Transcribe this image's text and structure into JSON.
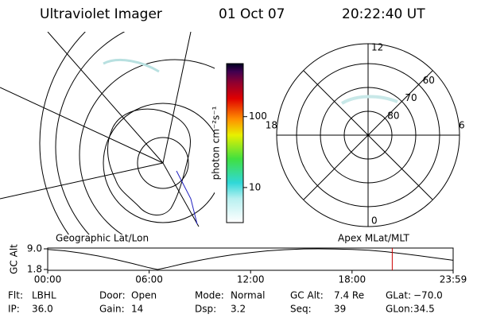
{
  "header": {
    "title": "Ultraviolet Imager",
    "date": "01 Oct 07",
    "time": "20:22:40 UT"
  },
  "colorbar": {
    "label": "photon cm⁻²s⁻¹",
    "scale": "log",
    "lim": [
      3.2,
      560
    ],
    "ticks": [
      10,
      100
    ]
  },
  "polar": {
    "mlt_labels": [
      12,
      18,
      6,
      0
    ],
    "lat_labels": [
      60,
      70,
      80
    ]
  },
  "altitude_plot": {
    "left_title": "Geographic Lat/Lon",
    "right_title": "Apex MLat/MLT",
    "ylabel": "GC Alt",
    "ylim": [
      1.8,
      9.0
    ],
    "yticks": [
      {
        "value": 9.0,
        "label": "9.0"
      },
      {
        "value": 1.8,
        "label": "1.8"
      }
    ],
    "xlim": [
      0,
      23.98
    ],
    "xticks": [
      {
        "value": 0,
        "label": "00:00"
      },
      {
        "value": 6,
        "label": "06:00"
      },
      {
        "value": 12,
        "label": "12:00"
      },
      {
        "value": 18,
        "label": "18:00"
      },
      {
        "value": 23.98,
        "label": "23:59"
      }
    ],
    "x": [
      0,
      1,
      2,
      3,
      4,
      5,
      6,
      6.5,
      7,
      8,
      9,
      10,
      11,
      12,
      13,
      14,
      15,
      16,
      17,
      18,
      19,
      20,
      21,
      22,
      23,
      23.98
    ],
    "values": [
      8.8,
      8.3,
      7.5,
      6.5,
      5.3,
      3.9,
      2.4,
      1.8,
      2.4,
      3.8,
      5.0,
      6.1,
      7.0,
      7.7,
      8.3,
      8.7,
      8.95,
      9.0,
      8.95,
      8.8,
      8.5,
      8.0,
      7.3,
      6.6,
      5.8,
      5.0
    ],
    "marker_color": "#cc0000"
  },
  "footer": {
    "rows": [
      [
        [
          "Flt:",
          "LBHL"
        ],
        [
          "Door:",
          "Open"
        ],
        [
          "Mode:",
          "Normal"
        ],
        [
          "GC Alt:",
          "7.4 Re"
        ],
        [
          "GLat:",
          "−70.0"
        ]
      ],
      [
        [
          "IP:",
          "36.0"
        ],
        [
          "Gain:",
          "14"
        ],
        [
          "Dsp:",
          "3.2"
        ],
        [
          "Seq:",
          "39"
        ],
        [
          "GLon:",
          "34.5"
        ]
      ]
    ]
  }
}
